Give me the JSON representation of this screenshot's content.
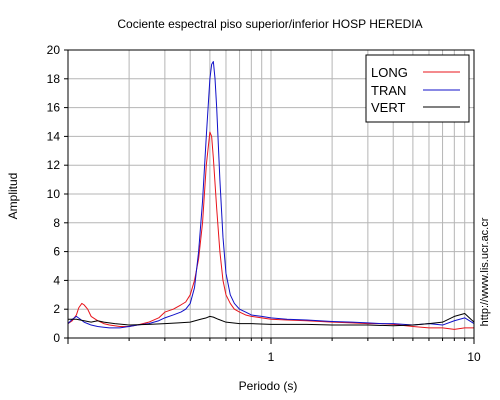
{
  "chart_data": {
    "type": "line",
    "title": "Cociente espectral piso superior/inferior  HOSP HEREDIA",
    "xlabel": "Periodo (s)",
    "ylabel": "Amplitud",
    "side_label": "http://www.lis.ucr.ac.cr",
    "x_scale": "log",
    "xlim": [
      0.1,
      10
    ],
    "ylim": [
      0,
      20
    ],
    "x_tick_labels": [
      "1",
      "10"
    ],
    "x_ticks": [
      1,
      10
    ],
    "y_ticks": [
      0,
      2,
      4,
      6,
      8,
      10,
      12,
      14,
      16,
      18,
      20
    ],
    "y_tick_labels": [
      "0",
      "2",
      "4",
      "6",
      "8",
      "10",
      "12",
      "14",
      "16",
      "18",
      "20"
    ],
    "grid": true,
    "legend_position": "top-right",
    "series": [
      {
        "name": "LONG",
        "color": "#e8141b",
        "x": [
          0.1,
          0.105,
          0.11,
          0.113,
          0.117,
          0.12,
          0.125,
          0.13,
          0.14,
          0.15,
          0.16,
          0.18,
          0.2,
          0.22,
          0.25,
          0.28,
          0.3,
          0.33,
          0.36,
          0.38,
          0.4,
          0.42,
          0.44,
          0.46,
          0.48,
          0.5,
          0.51,
          0.52,
          0.54,
          0.56,
          0.58,
          0.6,
          0.63,
          0.66,
          0.7,
          0.75,
          0.8,
          0.9,
          1.0,
          1.2,
          1.5,
          2,
          2.5,
          3,
          3.5,
          4,
          5,
          6,
          7,
          8,
          9,
          10
        ],
        "y": [
          1.0,
          1.2,
          1.6,
          2.1,
          2.4,
          2.3,
          2.0,
          1.5,
          1.2,
          1.0,
          0.9,
          0.8,
          0.8,
          0.9,
          1.1,
          1.4,
          1.8,
          2.0,
          2.3,
          2.5,
          3.0,
          4.0,
          5.5,
          8.0,
          12.0,
          14.3,
          14.0,
          12.5,
          9.0,
          6.0,
          4.0,
          3.0,
          2.4,
          2.0,
          1.8,
          1.6,
          1.5,
          1.4,
          1.3,
          1.25,
          1.2,
          1.1,
          1.05,
          1.0,
          1.0,
          0.95,
          0.8,
          0.7,
          0.7,
          0.6,
          0.7,
          0.7
        ]
      },
      {
        "name": "TRAN",
        "color": "#1010c8",
        "x": [
          0.1,
          0.105,
          0.11,
          0.115,
          0.12,
          0.125,
          0.13,
          0.14,
          0.15,
          0.16,
          0.18,
          0.2,
          0.22,
          0.25,
          0.28,
          0.3,
          0.33,
          0.36,
          0.38,
          0.4,
          0.42,
          0.44,
          0.46,
          0.48,
          0.5,
          0.51,
          0.52,
          0.53,
          0.54,
          0.56,
          0.58,
          0.6,
          0.63,
          0.66,
          0.7,
          0.75,
          0.8,
          0.9,
          1.0,
          1.2,
          1.5,
          2,
          2.5,
          3,
          3.5,
          4,
          5,
          6,
          7,
          8,
          9,
          10
        ],
        "y": [
          1.0,
          1.3,
          1.5,
          1.3,
          1.1,
          1.0,
          0.9,
          0.8,
          0.75,
          0.7,
          0.7,
          0.8,
          0.9,
          1.0,
          1.2,
          1.4,
          1.6,
          1.8,
          2.0,
          2.4,
          3.5,
          6.0,
          9.5,
          14.0,
          18.0,
          19.0,
          19.2,
          18.0,
          16.0,
          11.0,
          7.0,
          4.5,
          3.0,
          2.4,
          2.0,
          1.8,
          1.6,
          1.5,
          1.4,
          1.3,
          1.25,
          1.15,
          1.1,
          1.05,
          1.0,
          1.0,
          0.9,
          1.0,
          0.9,
          1.2,
          1.4,
          1.0
        ]
      },
      {
        "name": "VERT",
        "color": "#000000",
        "x": [
          0.1,
          0.11,
          0.12,
          0.13,
          0.14,
          0.15,
          0.17,
          0.2,
          0.25,
          0.3,
          0.35,
          0.4,
          0.45,
          0.48,
          0.5,
          0.52,
          0.55,
          0.6,
          0.7,
          0.8,
          1.0,
          1.5,
          2,
          3,
          4,
          5,
          6,
          7,
          8,
          9,
          10
        ],
        "y": [
          1.3,
          1.3,
          1.2,
          1.1,
          1.2,
          1.1,
          1.0,
          0.9,
          0.95,
          1.0,
          1.05,
          1.1,
          1.3,
          1.4,
          1.5,
          1.45,
          1.3,
          1.1,
          1.0,
          1.0,
          0.95,
          0.95,
          0.9,
          0.9,
          0.85,
          0.9,
          1.0,
          1.1,
          1.5,
          1.7,
          1.1
        ]
      }
    ]
  }
}
